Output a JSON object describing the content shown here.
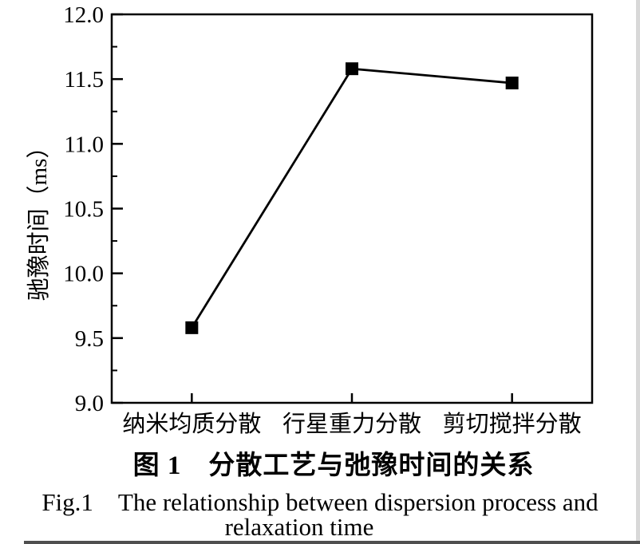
{
  "figure": {
    "caption_zh": "图 1　分散工艺与弛豫时间的关系",
    "caption_en_line1": "Fig.1　The relationship between dispersion process and",
    "caption_en_line2": "relaxation time"
  },
  "chart_data": {
    "type": "line",
    "categories": [
      "纳米均质分散",
      "行星重力分散",
      "剪切搅拌分散"
    ],
    "series": [
      {
        "name": "弛豫时间",
        "values": [
          9.58,
          11.58,
          11.47
        ]
      }
    ],
    "ylabel": "驰豫时间（ms）",
    "xlabel": "",
    "ylim": [
      9.0,
      12.0
    ],
    "ytick_step": 0.5,
    "ytick_minor_step": 0.25,
    "ytick_labels": [
      "9.0",
      "9.5",
      "10.0",
      "10.5",
      "11.0",
      "11.5",
      "12.0"
    ],
    "grid": false,
    "legend": "none",
    "marker": "square",
    "line_color": "#000000",
    "marker_color": "#000000",
    "frame": true
  },
  "page": {
    "background": "#ffffff",
    "right_band_color": "#d8d8d8",
    "bottom_band_color": "#4f4f4f"
  }
}
